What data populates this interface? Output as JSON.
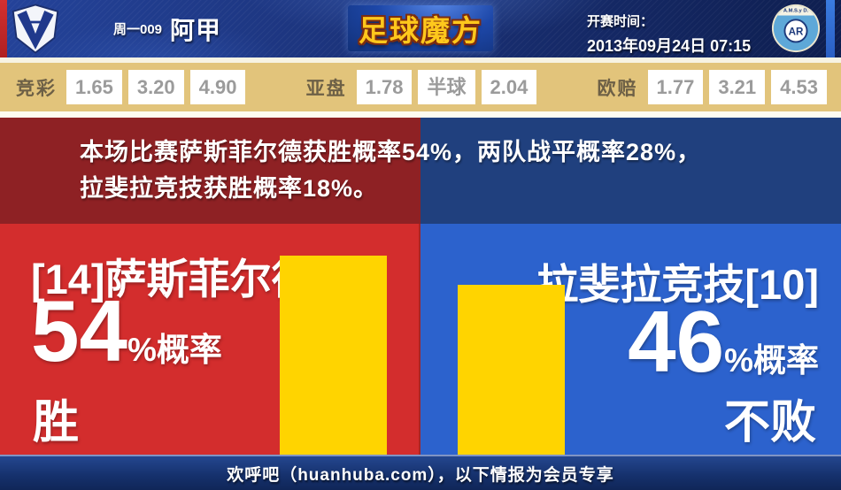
{
  "header": {
    "match_code": "周一009",
    "league": "阿甲",
    "brand": "足球魔方",
    "kickoff_label": "开赛时间：",
    "kickoff_time": "2013年09月24日 07:15",
    "home_crest_monogram": "V",
    "away_crest_top_text": "A.M.S.y D.",
    "away_crest_monogram": "AR"
  },
  "odds": {
    "jingcai": {
      "label": "竞彩",
      "values": [
        "1.65",
        "3.20",
        "4.90"
      ]
    },
    "yapan": {
      "label": "亚盘",
      "values": [
        "1.78",
        "半球",
        "2.04"
      ]
    },
    "oupei": {
      "label": "欧赔",
      "values": [
        "1.77",
        "3.21",
        "4.53"
      ]
    }
  },
  "summary": {
    "line1": "本场比赛萨斯菲尔德获胜概率54%，两队战平概率28%，",
    "line2": "拉斐拉竞技获胜概率18%。"
  },
  "panels": {
    "home": {
      "team": "[14]萨斯菲尔德",
      "percent": "54",
      "percent_suffix": "%概率",
      "outcome": "胜"
    },
    "away": {
      "team": "拉斐拉竞技[10]",
      "percent": "46",
      "percent_suffix": "%概率",
      "outcome": "不败"
    }
  },
  "chart_data": {
    "type": "bar",
    "categories": [
      "[14]萨斯菲尔德",
      "拉斐拉竞技[10]"
    ],
    "values": [
      54,
      46
    ],
    "unit": "%",
    "annotations": [
      "胜",
      "不败"
    ],
    "bar_color": "#ffd400",
    "ylim": [
      0,
      62.6
    ],
    "grid": false,
    "legend": "none"
  },
  "footer": {
    "text": "欢呼吧（huanhuba.com），以下情报为会员专享"
  },
  "colors": {
    "header_navy": "#1b3279",
    "odds_tan": "#e2c47b",
    "summary_red": "#8e2124",
    "summary_navy": "#20407e",
    "home_red": "#d32d2d",
    "away_blue": "#2c62cd",
    "bar_yellow": "#ffd400",
    "brand_gold": "#ffc81c",
    "odds_value_gray": "#9b9b9b"
  }
}
